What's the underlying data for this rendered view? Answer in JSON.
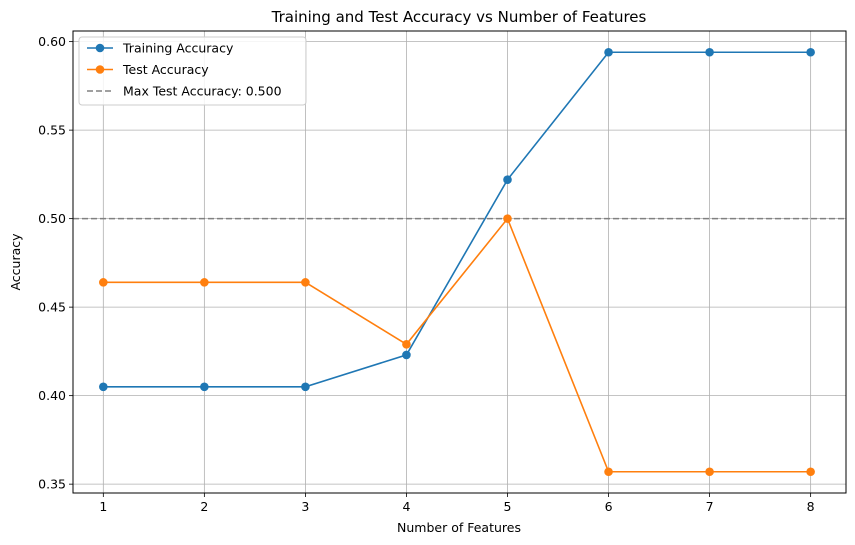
{
  "chart_data": {
    "type": "line",
    "title": "Training and Test Accuracy vs Number of Features",
    "xlabel": "Number of Features",
    "ylabel": "Accuracy",
    "x": [
      1,
      2,
      3,
      4,
      5,
      6,
      7,
      8
    ],
    "xlim": [
      0.7,
      8.35
    ],
    "ylim": [
      0.345,
      0.606
    ],
    "xticks": [
      1,
      2,
      3,
      4,
      5,
      6,
      7,
      8
    ],
    "yticks": [
      0.35,
      0.4,
      0.45,
      0.5,
      0.55,
      0.6
    ],
    "ytick_labels": [
      "0.35",
      "0.40",
      "0.45",
      "0.50",
      "0.55",
      "0.60"
    ],
    "grid": true,
    "legend_position": "top-left",
    "series": [
      {
        "name": "Training Accuracy",
        "color": "#1f77b4",
        "marker": "circle",
        "values": [
          0.405,
          0.405,
          0.405,
          0.423,
          0.522,
          0.594,
          0.594,
          0.594
        ]
      },
      {
        "name": "Test Accuracy",
        "color": "#ff7f0e",
        "marker": "circle",
        "values": [
          0.464,
          0.464,
          0.464,
          0.429,
          0.5,
          0.357,
          0.357,
          0.357
        ]
      }
    ],
    "reference_lines": [
      {
        "name": "Max Test Accuracy: 0.500",
        "value": 0.5,
        "orientation": "horizontal",
        "style": "dashed",
        "color": "#808080"
      }
    ]
  }
}
